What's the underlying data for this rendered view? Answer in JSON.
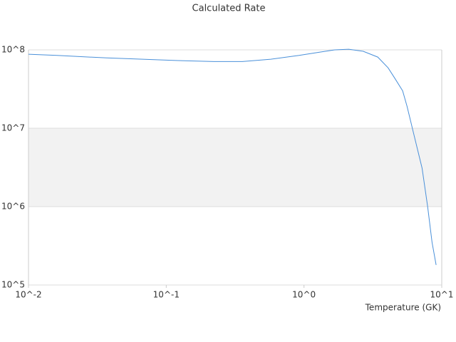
{
  "chart_data": {
    "type": "line",
    "title": "Calculated Rate",
    "x_label": "Temperature (GK)",
    "xlog": true,
    "ylog": true,
    "grid": true,
    "bands": true,
    "x": [
      0.01,
      0.0161,
      0.037,
      0.0673,
      0.122,
      0.221,
      0.357,
      0.574,
      0.92,
      1.32,
      1.67,
      2.11,
      2.69,
      3.43,
      4.08,
      4.58,
      5.2,
      5.6,
      6.3,
      7.2,
      7.9,
      8.5,
      9.1
    ],
    "series": [
      {
        "color": "#4a90d9",
        "values": [
          88000000,
          85000000,
          79000000,
          76000000,
          73000000,
          71000000,
          71000000,
          76000000,
          85000000,
          94000000,
          100000000,
          102000000,
          96000000,
          81000000,
          59000000,
          43000000,
          30000000,
          19000000,
          8100000,
          3100000,
          1000000,
          350000,
          180000
        ]
      }
    ],
    "xlim": [
      0.01,
      10
    ],
    "ylim": [
      100000,
      100000000
    ],
    "xticks": [
      {
        "value": 0.01,
        "label": "10^-2"
      },
      {
        "value": 0.1,
        "label": "10^-1"
      },
      {
        "value": 1,
        "label": "10^0"
      },
      {
        "value": 10,
        "label": "10^1"
      }
    ],
    "yticks": [
      {
        "value": 100000,
        "label": "10^5"
      },
      {
        "value": 1000000,
        "label": "10^6"
      },
      {
        "value": 10000000,
        "label": "10^7"
      },
      {
        "value": 100000000,
        "label": "10^8"
      }
    ]
  }
}
